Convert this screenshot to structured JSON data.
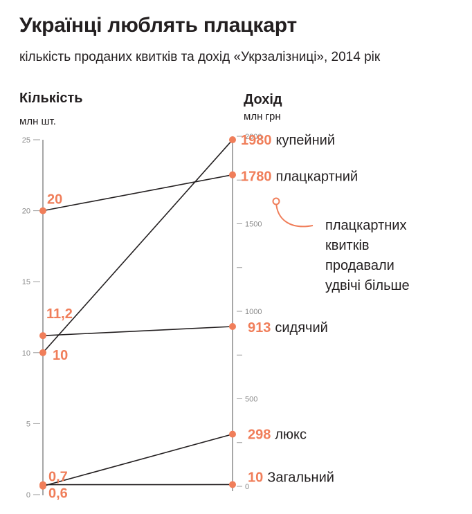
{
  "header": {
    "title": "Українці люблять плацкарт",
    "subtitle": "кількість проданих квитків та дохід «Укрзалізниці», 2014 рік"
  },
  "colors": {
    "accent": "#f07e5a",
    "line": "#231f20",
    "axis": "#8a8a8a"
  },
  "chart_data": {
    "type": "slope",
    "left_axis": {
      "title": "Кількість",
      "unit": "млн шт.",
      "range": [
        0,
        25
      ],
      "ticks": [
        0,
        5,
        10,
        15,
        20,
        25
      ],
      "tick_labels": [
        "0",
        "5",
        "10",
        "15",
        "20",
        "25"
      ]
    },
    "right_axis": {
      "title": "Дохід",
      "unit": "млн  грн",
      "range": [
        0,
        2000
      ],
      "ticks": [
        0,
        500,
        1000,
        1500,
        2000
      ],
      "tick_labels": [
        "0",
        "500",
        "1000",
        "1500",
        "2000"
      ],
      "minor_step": 250
    },
    "series": [
      {
        "name": "купейний",
        "tickets": 10,
        "tickets_label": "10",
        "revenue": 1980,
        "revenue_label": "1980"
      },
      {
        "name": "плацкартний",
        "tickets": 20,
        "tickets_label": "20",
        "revenue": 1780,
        "revenue_label": "1780"
      },
      {
        "name": "сидячий",
        "tickets": 11.2,
        "tickets_label": "11,2",
        "revenue": 913,
        "revenue_label": "913"
      },
      {
        "name": "люкс",
        "tickets": 0.6,
        "tickets_label": "0,6",
        "revenue": 298,
        "revenue_label": "298"
      },
      {
        "name": "Загальний",
        "tickets": 0.7,
        "tickets_label": "0,7",
        "revenue": 10,
        "revenue_label": "10"
      }
    ],
    "annotation": {
      "lines": [
        "плацкартних",
        "квитків",
        "продавали",
        "удвічі більше"
      ]
    }
  }
}
